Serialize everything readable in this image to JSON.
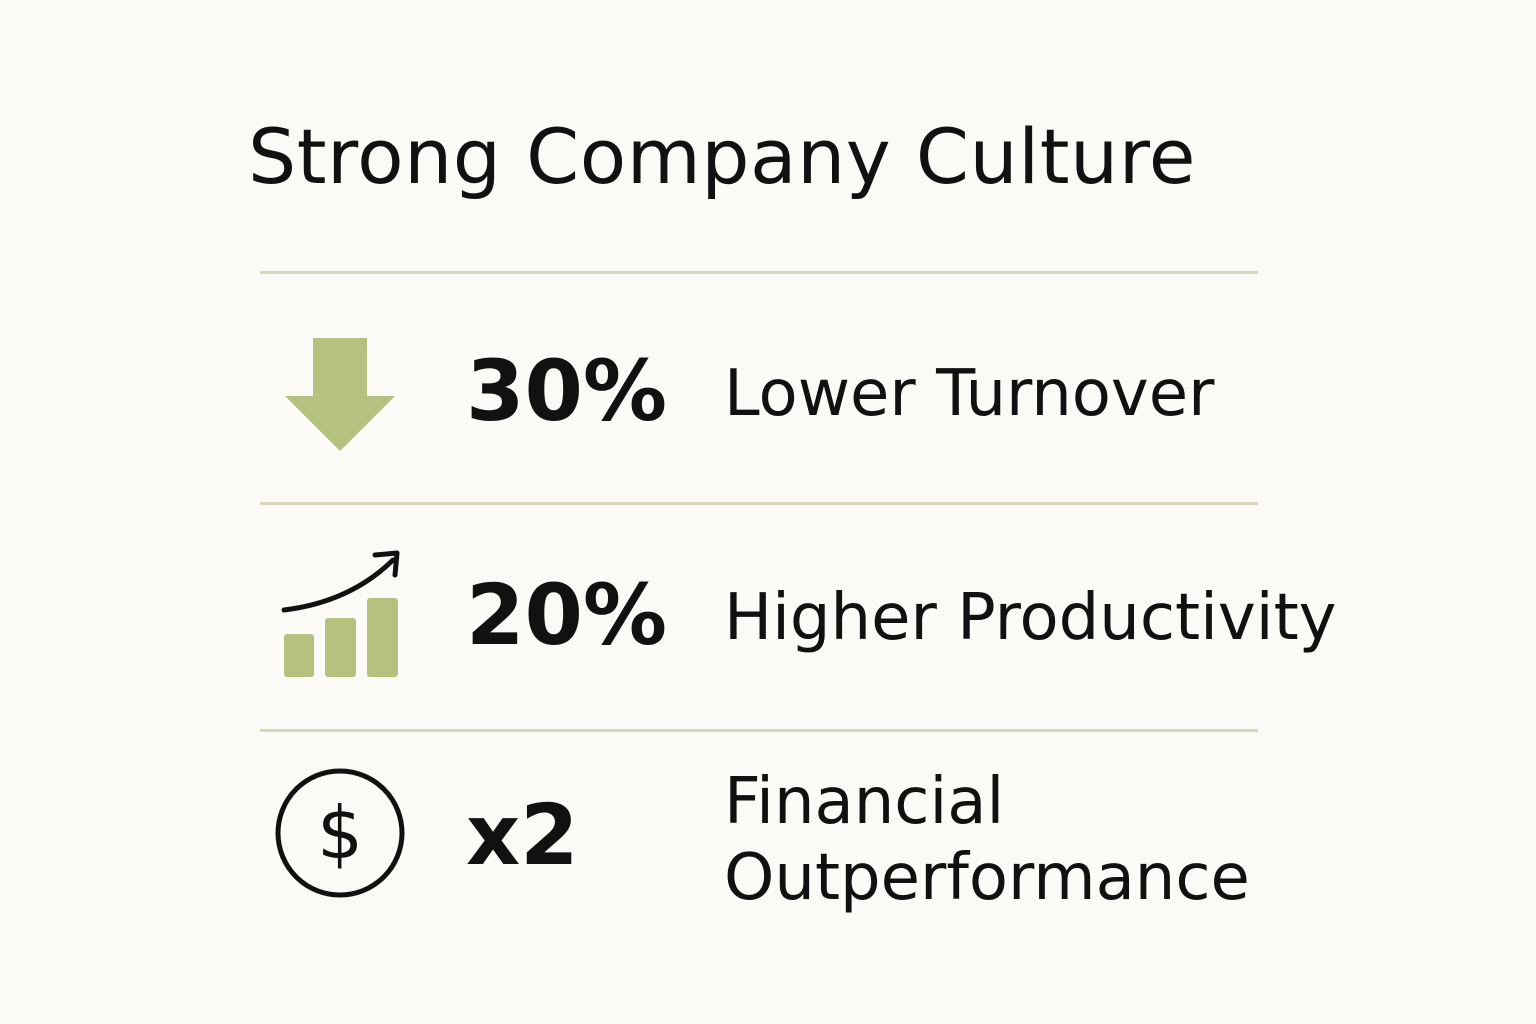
{
  "header": {
    "title": "Strong Company Culture"
  },
  "items": [
    {
      "stat": "30%",
      "label": "Lower Turnover"
    },
    {
      "stat": "20%",
      "label": "Higher Productivity"
    },
    {
      "stat": "x2",
      "label": "Financial Outperformance"
    }
  ]
}
